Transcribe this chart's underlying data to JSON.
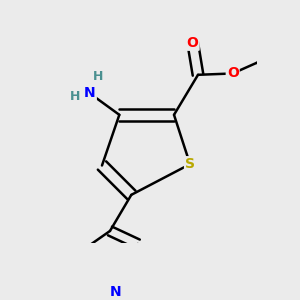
{
  "background_color": "#ebebeb",
  "atom_colors": {
    "O": "#ff0000",
    "N": "#0000ff",
    "S": "#b8a800",
    "C": "#000000",
    "H": "#4a9090"
  },
  "bond_color": "#000000",
  "bond_width": 1.8,
  "fig_size": [
    3.0,
    3.0
  ],
  "dpi": 100
}
